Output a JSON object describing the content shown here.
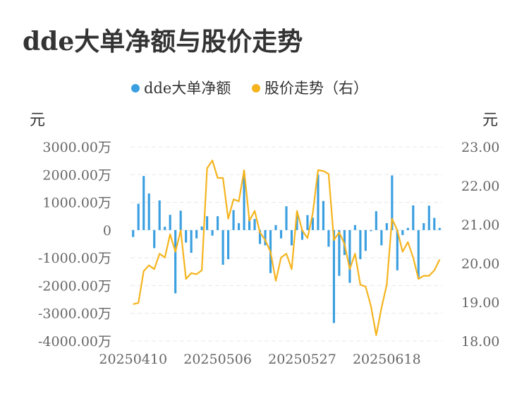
{
  "title": "dde大单净额与股价走势",
  "colors": {
    "bar": "#3a9fe0",
    "line": "#f5b41e",
    "grid": "#e8e8e8",
    "text": "#333333",
    "axis_text": "#666666"
  },
  "chart_data": {
    "type": "bar+line",
    "legend": {
      "placement": "top-center",
      "entries": [
        {
          "label": "dde大单净额",
          "color": "#3a9fe0"
        },
        {
          "label": "股价走势（右）",
          "color": "#f5b41e"
        }
      ]
    },
    "left_axis": {
      "unit": "元",
      "ylim": [
        -4000,
        3000
      ],
      "ticks": [
        3000,
        2000,
        1000,
        0,
        -1000,
        -2000,
        -3000,
        -4000
      ],
      "tick_labels": [
        "3000.00万",
        "2000.00万",
        "1000.00万",
        "0",
        "-1000.00万",
        "-2000.00万",
        "-3000.00万",
        "-4000.00万"
      ]
    },
    "right_axis": {
      "unit": "元",
      "ylim": [
        18,
        23
      ],
      "ticks": [
        23,
        22,
        21,
        20,
        19,
        18
      ],
      "tick_labels": [
        "23.00",
        "22.00",
        "21.00",
        "20.00",
        "19.00",
        "18.00"
      ]
    },
    "x_tick_labels": [
      {
        "label": "20250410",
        "index": 0
      },
      {
        "label": "20250506",
        "index": 16
      },
      {
        "label": "20250527",
        "index": 32
      },
      {
        "label": "20250618",
        "index": 48
      }
    ],
    "grid": true,
    "series": [
      {
        "name": "dde大单净额",
        "type": "bar",
        "axis": "left",
        "values": [
          -250,
          950,
          1950,
          1320,
          -650,
          1070,
          120,
          550,
          -2280,
          700,
          -450,
          -820,
          -300,
          130,
          500,
          -200,
          500,
          -1250,
          -1050,
          720,
          250,
          1950,
          400,
          400,
          -500,
          -550,
          -1550,
          180,
          -300,
          860,
          -550,
          580,
          -350,
          540,
          450,
          2000,
          1050,
          -600,
          -3350,
          -1650,
          -900,
          -1900,
          180,
          -1050,
          -750,
          0,
          680,
          -550,
          250,
          1970,
          -1450,
          -180,
          80,
          890,
          -1750,
          250,
          880,
          440,
          80
        ]
      },
      {
        "name": "股价走势（右）",
        "type": "line",
        "axis": "right",
        "values": [
          18.95,
          18.98,
          19.8,
          19.95,
          19.85,
          20.25,
          20.15,
          20.75,
          20.3,
          20.85,
          19.6,
          19.75,
          19.72,
          19.82,
          22.45,
          22.65,
          22.2,
          22.2,
          21.15,
          21.65,
          21.6,
          22.4,
          21.1,
          21.35,
          20.8,
          20.6,
          20.3,
          19.55,
          20.15,
          20.25,
          19.85,
          21.35,
          20.85,
          20.65,
          21.3,
          22.4,
          22.38,
          22.3,
          20.6,
          20.8,
          20.5,
          19.85,
          20.25,
          19.45,
          19.4,
          18.9,
          18.15,
          18.85,
          19.45,
          21.15,
          20.85,
          20.3,
          20.55,
          20.15,
          19.6,
          19.68,
          19.68,
          19.82,
          20.1
        ]
      }
    ]
  }
}
